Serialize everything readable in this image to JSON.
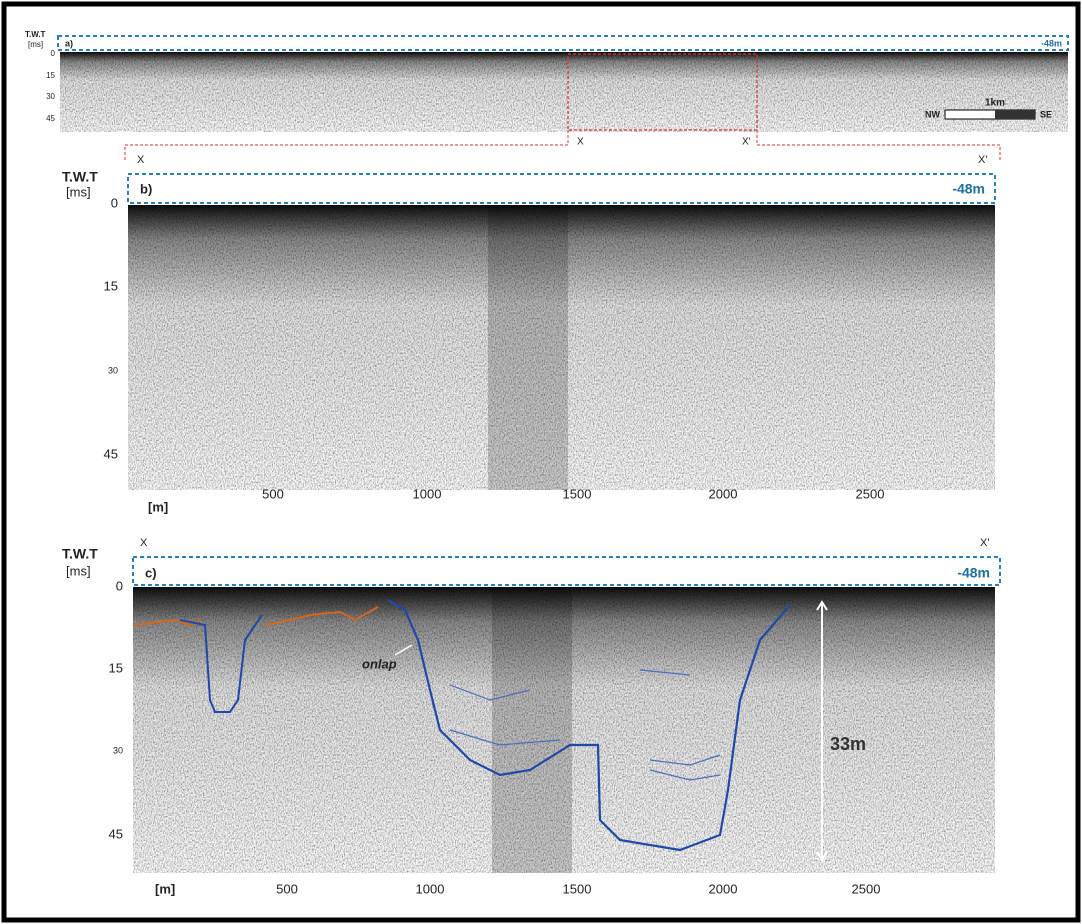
{
  "panel_a": {
    "axis_title": "T.W.T",
    "axis_unit": "[ms]",
    "label": "a)",
    "depth": "-48m",
    "yticks": [
      "0",
      "15",
      "30",
      "45"
    ],
    "scale_bar": {
      "length": "1km",
      "left": "NW",
      "right": "SE"
    },
    "section_start": "X",
    "section_end": "X'"
  },
  "panel_b": {
    "section_start": "X",
    "section_end": "X'",
    "axis_title": "T.W.T",
    "axis_unit": "[ms]",
    "label": "b)",
    "depth": "-48m",
    "yticks": [
      "0",
      "15",
      "30",
      "45"
    ],
    "x_unit": "[m]",
    "xticks": [
      "500",
      "1000",
      "1500",
      "2000",
      "2500"
    ]
  },
  "panel_c": {
    "section_start": "X",
    "section_end": "X'",
    "axis_title": "T.W.T",
    "axis_unit": "[ms]",
    "label": "c)",
    "depth": "-48m",
    "yticks": [
      "0",
      "15",
      "30",
      "45"
    ],
    "x_unit": "[m]",
    "xticks": [
      "500",
      "1000",
      "1500",
      "2000",
      "2500"
    ],
    "annotations": {
      "onlap": "onlap",
      "thickness": "33m"
    }
  }
}
